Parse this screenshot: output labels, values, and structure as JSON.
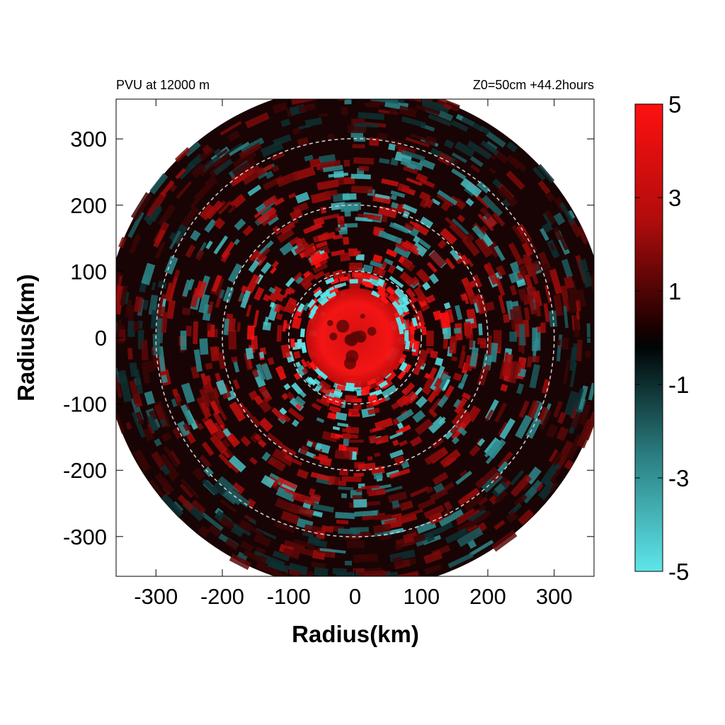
{
  "chart_data": {
    "type": "heatmap",
    "title_left": "PVU at 12000 m",
    "title_right": "Z0=50cm  +44.2hours",
    "xlabel": "Radius(km)",
    "ylabel": "Radius(km)",
    "xlim": [
      -360,
      360
    ],
    "ylim": [
      -360,
      360
    ],
    "x_ticks": [
      -300,
      -200,
      -100,
      0,
      100,
      200,
      300
    ],
    "y_ticks": [
      300,
      200,
      100,
      0,
      -100,
      -200,
      -300
    ],
    "x_tick_labels": [
      "-300",
      "-200",
      "-100",
      "0",
      "100",
      "200",
      "300"
    ],
    "y_tick_labels": [
      "300",
      "200",
      "100",
      "0",
      "-100",
      "-200",
      "-300"
    ],
    "reference_circles_km": [
      100,
      200,
      300
    ],
    "domain_radius_km": 380,
    "grid": false,
    "colorbar": {
      "min": -5,
      "max": 5,
      "tick_values": [
        5,
        3,
        1,
        -1,
        -3,
        -5
      ],
      "tick_labels": [
        "5",
        "3",
        "1",
        "-1",
        "-3",
        "-5"
      ],
      "colors": {
        "max": "#ff1010",
        "mid": "#000000",
        "min": "#5ee6ea"
      },
      "position": "right"
    },
    "field_description_values": {
      "core_value": 5,
      "core_radius_km": 95,
      "ring_negative_radius_km": 90
    }
  }
}
